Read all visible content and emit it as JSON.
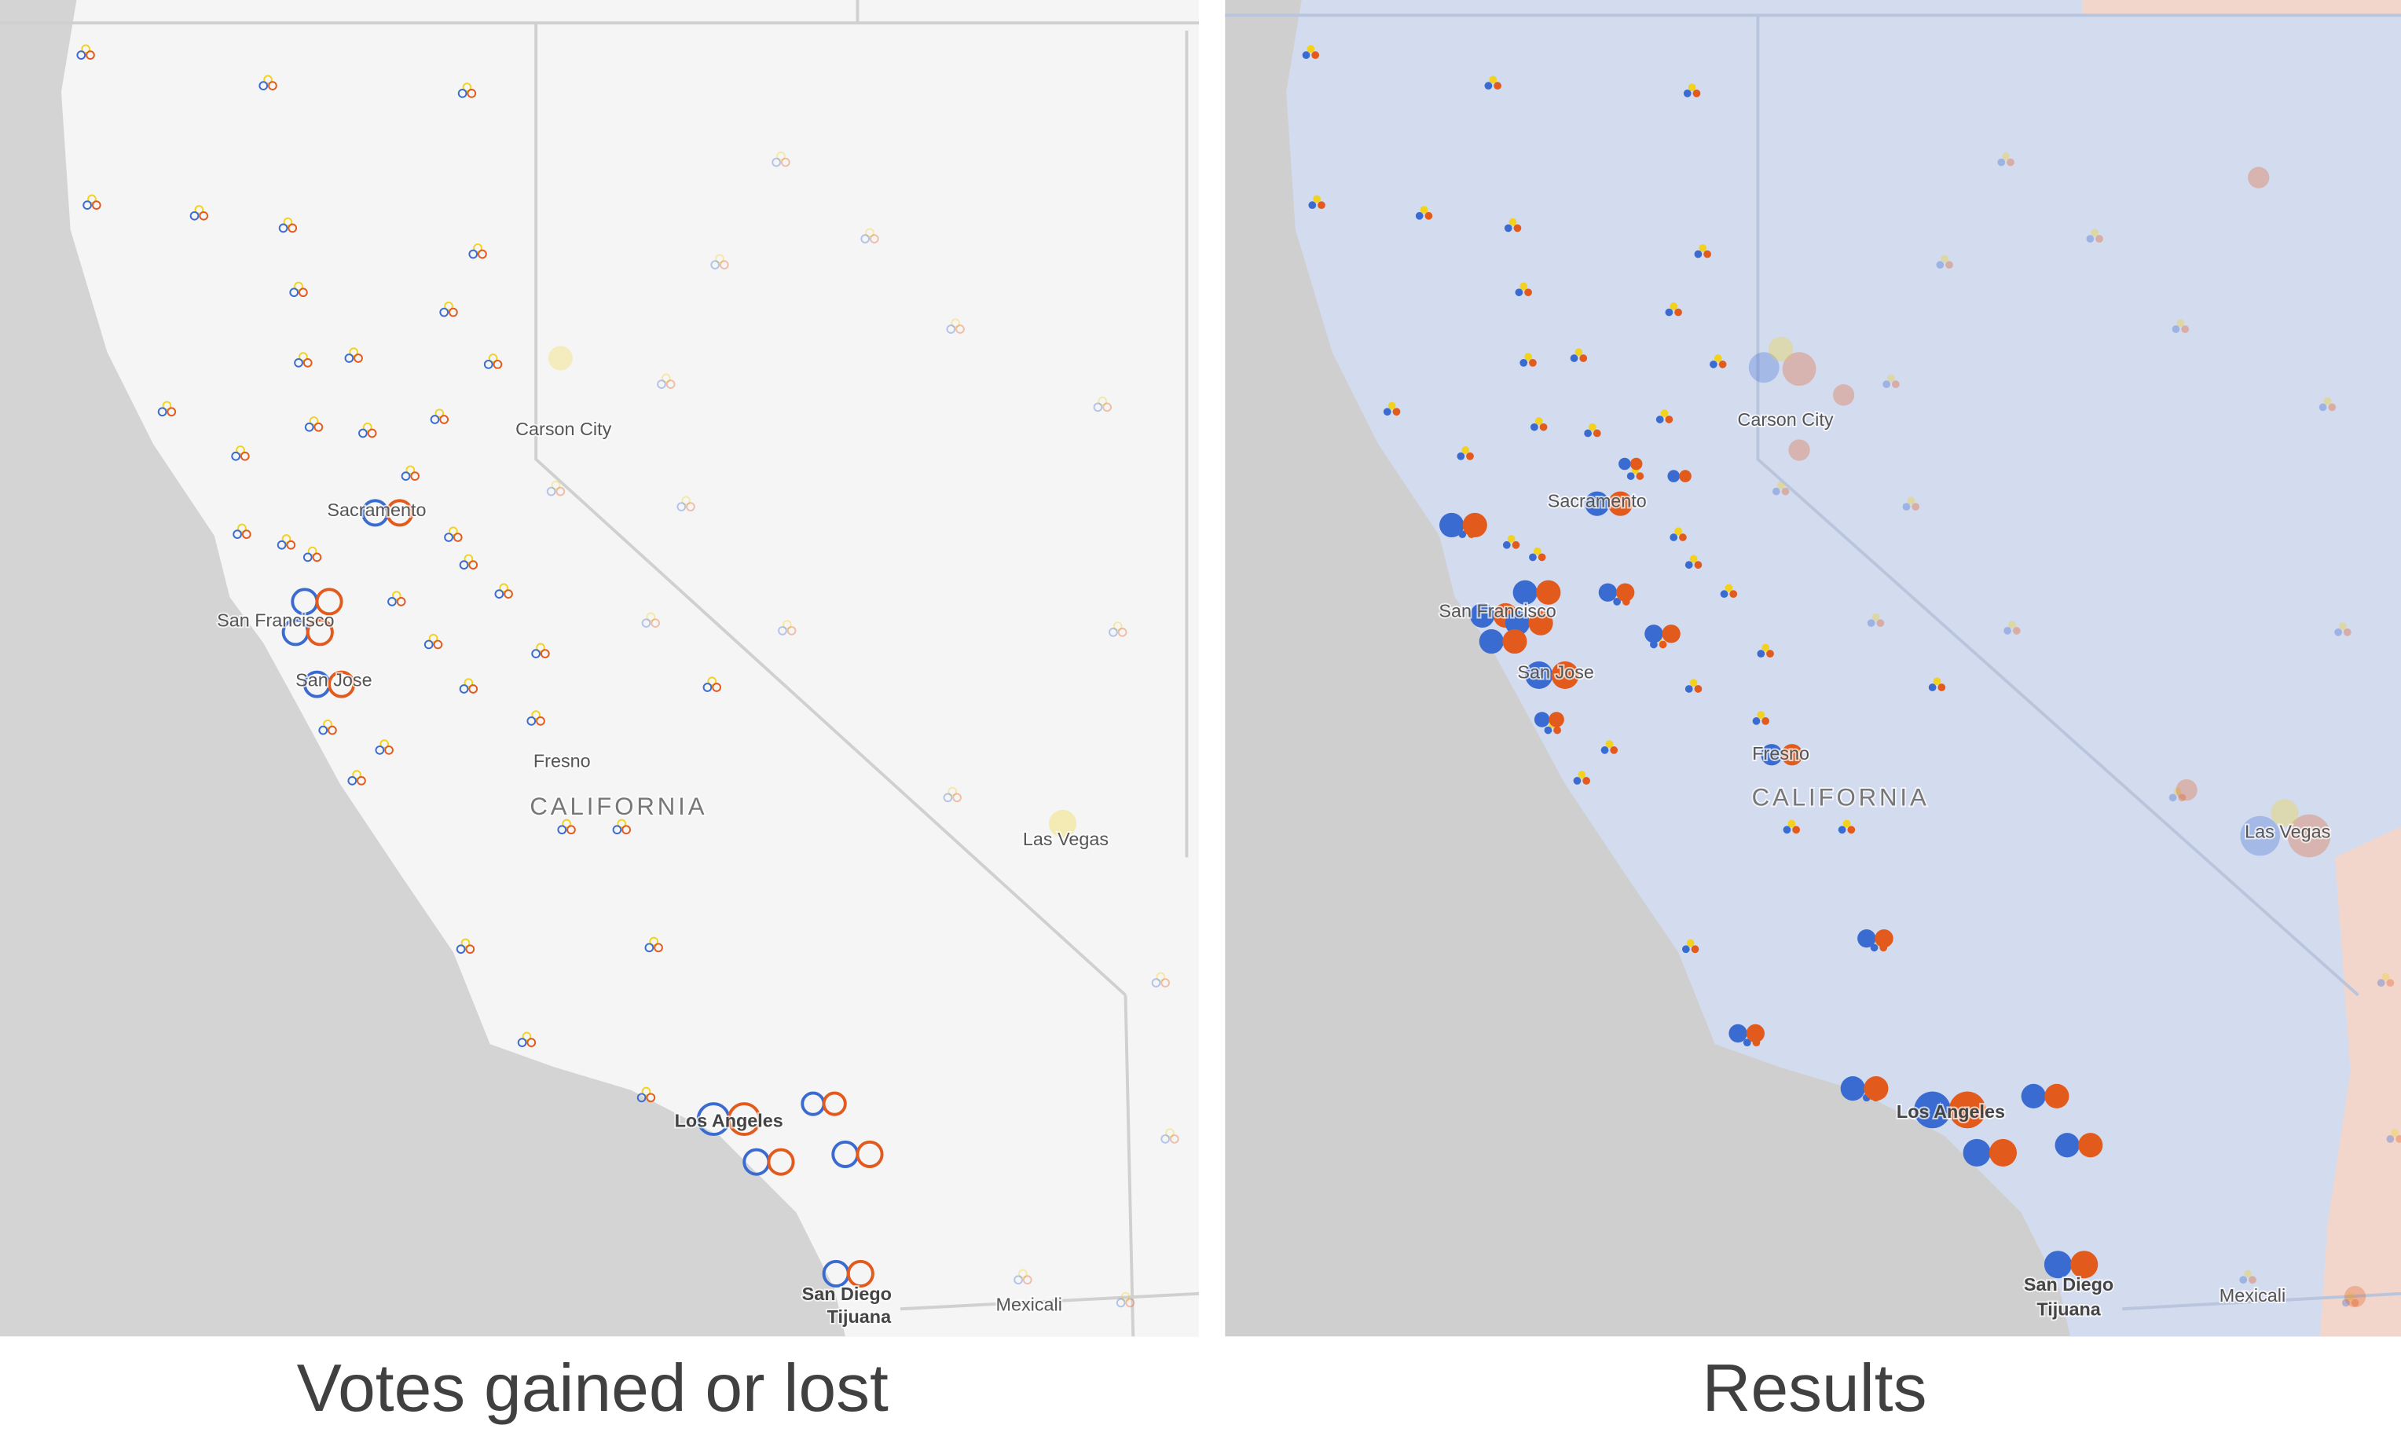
{
  "panels": [
    {
      "caption": "Votes gained or lost",
      "places": [
        "Carson City",
        "Sacramento",
        "San Francisco",
        "San Jose",
        "Fresno",
        "CALIFORNIA",
        "Las Vegas",
        "Los Angeles",
        "San Diego",
        "Tijuana",
        "Mexicali"
      ]
    },
    {
      "caption": "Results",
      "places": [
        "Carson City",
        "Sacramento",
        "San Francisco",
        "San Jose",
        "Fresno",
        "CALIFORNIA",
        "Las Vegas",
        "Los Angeles",
        "San Diego",
        "Tijuana",
        "Mexicali"
      ]
    }
  ]
}
